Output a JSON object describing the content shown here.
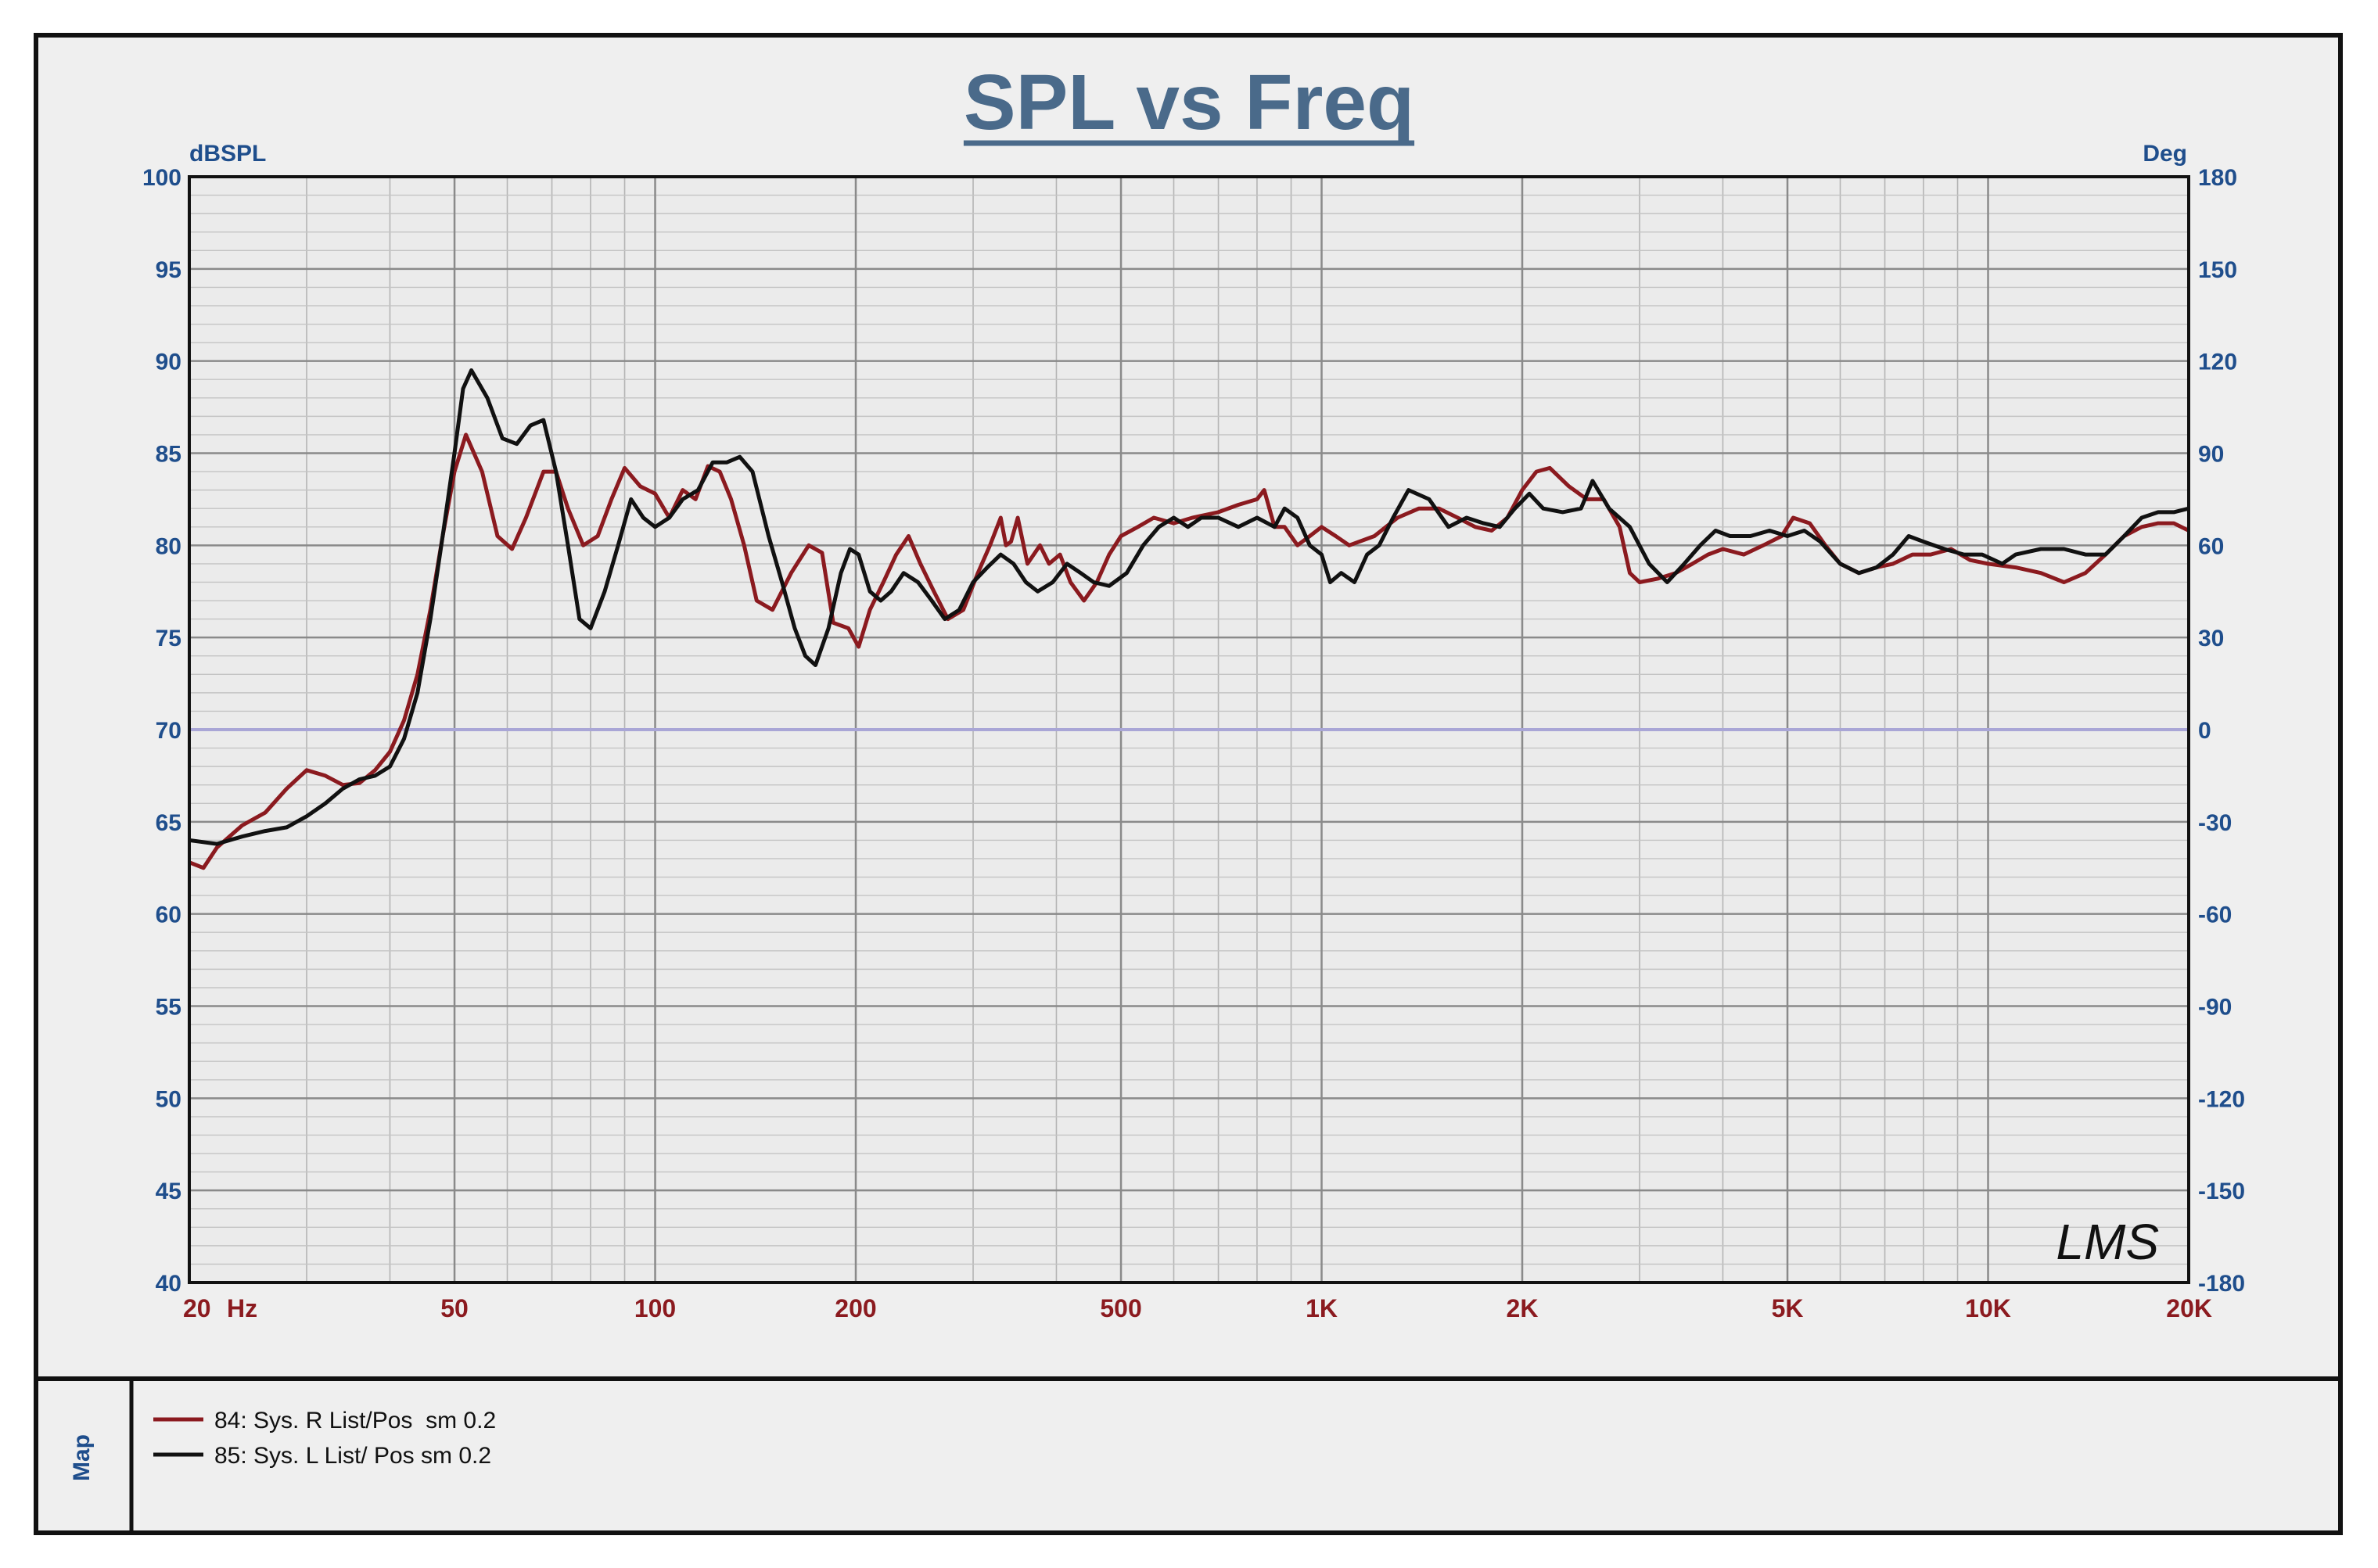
{
  "chart_data": {
    "type": "line",
    "title": "SPL vs Freq",
    "ylabel": "dBSPL",
    "y2label": "Deg",
    "xunit": "Hz",
    "xscale": "log",
    "xlim": [
      20,
      20000
    ],
    "ylim": [
      40,
      100
    ],
    "y2lim": [
      -180,
      180
    ],
    "grid": true,
    "x_ticks": [
      {
        "value": 20,
        "label": "20"
      },
      {
        "value": 50,
        "label": "50"
      },
      {
        "value": 100,
        "label": "100"
      },
      {
        "value": 200,
        "label": "200"
      },
      {
        "value": 500,
        "label": "500"
      },
      {
        "value": 1000,
        "label": "1K"
      },
      {
        "value": 2000,
        "label": "2K"
      },
      {
        "value": 5000,
        "label": "5K"
      },
      {
        "value": 10000,
        "label": "10K"
      },
      {
        "value": 20000,
        "label": "20K"
      }
    ],
    "y_ticks": [
      100,
      95,
      90,
      85,
      80,
      75,
      70,
      65,
      60,
      55,
      50,
      45,
      40
    ],
    "y2_ticks": [
      180,
      150,
      120,
      90,
      60,
      30,
      0,
      -30,
      -60,
      -90,
      -120,
      -150,
      -180
    ],
    "reference_line": {
      "y": 70,
      "color": "#a9a6d6"
    },
    "logo": "LMS",
    "legend_tab": "Map",
    "series": [
      {
        "name": "84: Sys. R List/Pos  sm 0.2",
        "color": "#8b1a1f",
        "points": [
          [
            20,
            62.8
          ],
          [
            21,
            62.5
          ],
          [
            22,
            63.6
          ],
          [
            24,
            64.8
          ],
          [
            26,
            65.5
          ],
          [
            28,
            66.8
          ],
          [
            30,
            67.8
          ],
          [
            32,
            67.5
          ],
          [
            34,
            67.0
          ],
          [
            36,
            67.1
          ],
          [
            38,
            67.8
          ],
          [
            40,
            68.8
          ],
          [
            42,
            70.5
          ],
          [
            44,
            73.0
          ],
          [
            46,
            76.5
          ],
          [
            48,
            80.5
          ],
          [
            50,
            84.0
          ],
          [
            52,
            86.0
          ],
          [
            55,
            84.0
          ],
          [
            58,
            80.5
          ],
          [
            61,
            79.8
          ],
          [
            64,
            81.5
          ],
          [
            68,
            84.0
          ],
          [
            71,
            84.0
          ],
          [
            74,
            82.0
          ],
          [
            78,
            80.0
          ],
          [
            82,
            80.5
          ],
          [
            86,
            82.5
          ],
          [
            90,
            84.2
          ],
          [
            95,
            83.2
          ],
          [
            100,
            82.8
          ],
          [
            105,
            81.5
          ],
          [
            110,
            83.0
          ],
          [
            115,
            82.5
          ],
          [
            120,
            84.3
          ],
          [
            125,
            84.0
          ],
          [
            130,
            82.5
          ],
          [
            136,
            80.0
          ],
          [
            142,
            77.0
          ],
          [
            150,
            76.5
          ],
          [
            160,
            78.5
          ],
          [
            170,
            80.0
          ],
          [
            178,
            79.6
          ],
          [
            185,
            75.8
          ],
          [
            195,
            75.5
          ],
          [
            202,
            74.5
          ],
          [
            210,
            76.5
          ],
          [
            220,
            78.0
          ],
          [
            230,
            79.5
          ],
          [
            240,
            80.5
          ],
          [
            250,
            79.0
          ],
          [
            262,
            77.5
          ],
          [
            275,
            76.0
          ],
          [
            290,
            76.5
          ],
          [
            305,
            78.5
          ],
          [
            318,
            80.0
          ],
          [
            330,
            81.5
          ],
          [
            336,
            80.0
          ],
          [
            342,
            80.2
          ],
          [
            350,
            81.5
          ],
          [
            362,
            79.0
          ],
          [
            378,
            80.0
          ],
          [
            390,
            79.0
          ],
          [
            405,
            79.5
          ],
          [
            420,
            78.0
          ],
          [
            440,
            77.0
          ],
          [
            460,
            78.0
          ],
          [
            480,
            79.5
          ],
          [
            500,
            80.5
          ],
          [
            530,
            81.0
          ],
          [
            560,
            81.5
          ],
          [
            600,
            81.2
          ],
          [
            640,
            81.5
          ],
          [
            700,
            81.8
          ],
          [
            750,
            82.2
          ],
          [
            800,
            82.5
          ],
          [
            820,
            83.0
          ],
          [
            850,
            81.0
          ],
          [
            880,
            81.0
          ],
          [
            920,
            80.0
          ],
          [
            960,
            80.5
          ],
          [
            1000,
            81.0
          ],
          [
            1050,
            80.5
          ],
          [
            1100,
            80.0
          ],
          [
            1200,
            80.5
          ],
          [
            1300,
            81.5
          ],
          [
            1400,
            82.0
          ],
          [
            1500,
            82.0
          ],
          [
            1600,
            81.5
          ],
          [
            1700,
            81.0
          ],
          [
            1800,
            80.8
          ],
          [
            1900,
            81.5
          ],
          [
            2000,
            83.0
          ],
          [
            2100,
            84.0
          ],
          [
            2200,
            84.2
          ],
          [
            2350,
            83.2
          ],
          [
            2500,
            82.5
          ],
          [
            2650,
            82.5
          ],
          [
            2800,
            81.0
          ],
          [
            2900,
            78.5
          ],
          [
            3000,
            78.0
          ],
          [
            3200,
            78.2
          ],
          [
            3400,
            78.5
          ],
          [
            3600,
            79.0
          ],
          [
            3800,
            79.5
          ],
          [
            4000,
            79.8
          ],
          [
            4300,
            79.5
          ],
          [
            4600,
            80.0
          ],
          [
            4900,
            80.5
          ],
          [
            5100,
            81.5
          ],
          [
            5400,
            81.2
          ],
          [
            5700,
            80.0
          ],
          [
            6000,
            79.0
          ],
          [
            6400,
            78.5
          ],
          [
            6800,
            78.8
          ],
          [
            7200,
            79.0
          ],
          [
            7700,
            79.5
          ],
          [
            8200,
            79.5
          ],
          [
            8800,
            79.8
          ],
          [
            9400,
            79.2
          ],
          [
            10000,
            79.0
          ],
          [
            11000,
            78.8
          ],
          [
            12000,
            78.5
          ],
          [
            13000,
            78.0
          ],
          [
            14000,
            78.5
          ],
          [
            15000,
            79.5
          ],
          [
            16000,
            80.5
          ],
          [
            17000,
            81.0
          ],
          [
            18000,
            81.2
          ],
          [
            19000,
            81.2
          ],
          [
            20000,
            80.8
          ]
        ]
      },
      {
        "name": "85: Sys. L List/ Pos sm 0.2",
        "color": "#111111",
        "points": [
          [
            20,
            64.0
          ],
          [
            22,
            63.8
          ],
          [
            24,
            64.2
          ],
          [
            26,
            64.5
          ],
          [
            28,
            64.7
          ],
          [
            30,
            65.3
          ],
          [
            32,
            66.0
          ],
          [
            34,
            66.8
          ],
          [
            36,
            67.3
          ],
          [
            38,
            67.5
          ],
          [
            40,
            68.0
          ],
          [
            42,
            69.5
          ],
          [
            44,
            72.0
          ],
          [
            46,
            76.0
          ],
          [
            48,
            80.5
          ],
          [
            50,
            85.0
          ],
          [
            51.5,
            88.5
          ],
          [
            53,
            89.5
          ],
          [
            56,
            88.0
          ],
          [
            59,
            85.8
          ],
          [
            62,
            85.5
          ],
          [
            65,
            86.5
          ],
          [
            68,
            86.8
          ],
          [
            71,
            84.0
          ],
          [
            74,
            80.0
          ],
          [
            77,
            76.0
          ],
          [
            80,
            75.5
          ],
          [
            84,
            77.5
          ],
          [
            88,
            80.0
          ],
          [
            92,
            82.5
          ],
          [
            96,
            81.5
          ],
          [
            100,
            81.0
          ],
          [
            105,
            81.5
          ],
          [
            110,
            82.5
          ],
          [
            116,
            83.0
          ],
          [
            122,
            84.5
          ],
          [
            128,
            84.5
          ],
          [
            134,
            84.8
          ],
          [
            140,
            84.0
          ],
          [
            148,
            80.5
          ],
          [
            155,
            78.0
          ],
          [
            162,
            75.5
          ],
          [
            168,
            74.0
          ],
          [
            174,
            73.5
          ],
          [
            182,
            75.5
          ],
          [
            190,
            78.5
          ],
          [
            196,
            79.8
          ],
          [
            202,
            79.5
          ],
          [
            210,
            77.5
          ],
          [
            218,
            77.0
          ],
          [
            226,
            77.5
          ],
          [
            236,
            78.5
          ],
          [
            248,
            78.0
          ],
          [
            260,
            77.0
          ],
          [
            272,
            76.0
          ],
          [
            286,
            76.5
          ],
          [
            300,
            78.0
          ],
          [
            315,
            78.8
          ],
          [
            330,
            79.5
          ],
          [
            345,
            79.0
          ],
          [
            360,
            78.0
          ],
          [
            375,
            77.5
          ],
          [
            395,
            78.0
          ],
          [
            415,
            79.0
          ],
          [
            435,
            78.5
          ],
          [
            455,
            78.0
          ],
          [
            480,
            77.8
          ],
          [
            510,
            78.5
          ],
          [
            540,
            80.0
          ],
          [
            570,
            81.0
          ],
          [
            600,
            81.5
          ],
          [
            630,
            81.0
          ],
          [
            660,
            81.5
          ],
          [
            700,
            81.5
          ],
          [
            750,
            81.0
          ],
          [
            800,
            81.5
          ],
          [
            850,
            81.0
          ],
          [
            880,
            82.0
          ],
          [
            920,
            81.5
          ],
          [
            960,
            80.0
          ],
          [
            1000,
            79.5
          ],
          [
            1030,
            78.0
          ],
          [
            1070,
            78.5
          ],
          [
            1120,
            78.0
          ],
          [
            1170,
            79.5
          ],
          [
            1220,
            80.0
          ],
          [
            1280,
            81.5
          ],
          [
            1350,
            83.0
          ],
          [
            1450,
            82.5
          ],
          [
            1550,
            81.0
          ],
          [
            1650,
            81.5
          ],
          [
            1750,
            81.2
          ],
          [
            1850,
            81.0
          ],
          [
            1950,
            82.0
          ],
          [
            2050,
            82.8
          ],
          [
            2150,
            82.0
          ],
          [
            2300,
            81.8
          ],
          [
            2450,
            82.0
          ],
          [
            2550,
            83.5
          ],
          [
            2700,
            82.0
          ],
          [
            2900,
            81.0
          ],
          [
            3100,
            79.0
          ],
          [
            3300,
            78.0
          ],
          [
            3500,
            79.0
          ],
          [
            3700,
            80.0
          ],
          [
            3900,
            80.8
          ],
          [
            4100,
            80.5
          ],
          [
            4400,
            80.5
          ],
          [
            4700,
            80.8
          ],
          [
            5000,
            80.5
          ],
          [
            5300,
            80.8
          ],
          [
            5600,
            80.2
          ],
          [
            6000,
            79.0
          ],
          [
            6400,
            78.5
          ],
          [
            6800,
            78.8
          ],
          [
            7200,
            79.5
          ],
          [
            7600,
            80.5
          ],
          [
            8000,
            80.2
          ],
          [
            8600,
            79.8
          ],
          [
            9200,
            79.5
          ],
          [
            9800,
            79.5
          ],
          [
            10500,
            79.0
          ],
          [
            11000,
            79.5
          ],
          [
            12000,
            79.8
          ],
          [
            13000,
            79.8
          ],
          [
            14000,
            79.5
          ],
          [
            15000,
            79.5
          ],
          [
            16000,
            80.5
          ],
          [
            17000,
            81.5
          ],
          [
            18000,
            81.8
          ],
          [
            19000,
            81.8
          ],
          [
            20000,
            82.0
          ]
        ]
      }
    ]
  }
}
